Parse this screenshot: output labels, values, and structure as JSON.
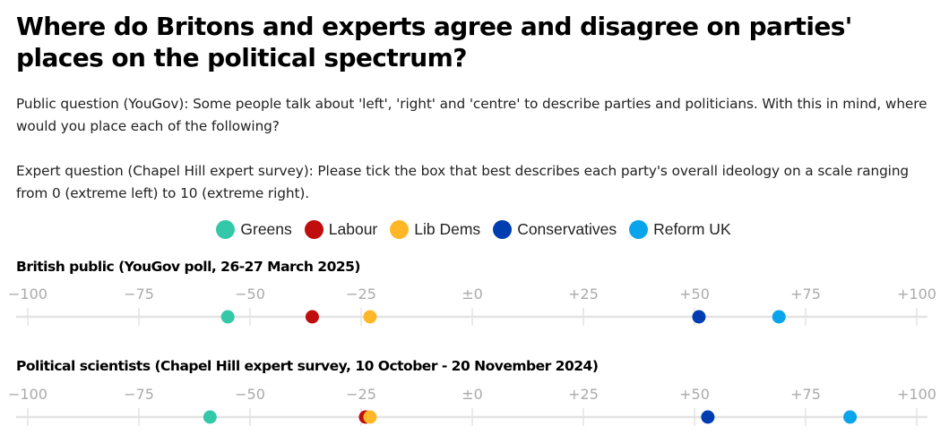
{
  "title": "Where do Britons and experts agree and disagree on parties' places on the political spectrum?",
  "public_question": "Public question (YouGov): Some people talk about 'left', 'right' and 'centre' to describe parties and politicians. With this in mind, where would you place each of the following?",
  "expert_question": "Expert question (Chapel Hill expert survey): Please tick the box that best describes each party's overall ideology on a scale ranging from 0 (extreme left) to 10 (extreme right).",
  "legend": [
    {
      "name": "Greens",
      "color": "#33c9a8"
    },
    {
      "name": "Labour",
      "color": "#c00d0d"
    },
    {
      "name": "Lib Dems",
      "color": "#ffb727"
    },
    {
      "name": "Conservatives",
      "color": "#003db0"
    },
    {
      "name": "Reform UK",
      "color": "#0aa4ec"
    }
  ],
  "chart_data": [
    {
      "type": "scatter",
      "title": "British public (YouGov poll, 26-27 March 2025)",
      "xlim": [
        -100,
        100
      ],
      "ticks": [
        -100,
        -75,
        -50,
        -25,
        0,
        25,
        50,
        75,
        100
      ],
      "tick_labels": [
        "−100",
        "−75",
        "−50",
        "−25",
        "±0",
        "+25",
        "+50",
        "+75",
        "+100"
      ],
      "grid": false,
      "series": [
        {
          "name": "Greens",
          "value": -55
        },
        {
          "name": "Labour",
          "value": -36
        },
        {
          "name": "Lib Dems",
          "value": -23
        },
        {
          "name": "Conservatives",
          "value": 51
        },
        {
          "name": "Reform UK",
          "value": 69
        }
      ]
    },
    {
      "type": "scatter",
      "title": "Political scientists (Chapel Hill expert survey, 10 October - 20 November 2024)",
      "xlim": [
        -100,
        100
      ],
      "ticks": [
        -100,
        -75,
        -50,
        -25,
        0,
        25,
        50,
        75,
        100
      ],
      "tick_labels": [
        "−100",
        "−75",
        "−50",
        "−25",
        "±0",
        "+25",
        "+50",
        "+75",
        "+100"
      ],
      "grid": false,
      "series": [
        {
          "name": "Greens",
          "value": -59
        },
        {
          "name": "Labour",
          "value": -24
        },
        {
          "name": "Lib Dems",
          "value": -23
        },
        {
          "name": "Conservatives",
          "value": 53
        },
        {
          "name": "Reform UK",
          "value": 85
        }
      ]
    }
  ]
}
